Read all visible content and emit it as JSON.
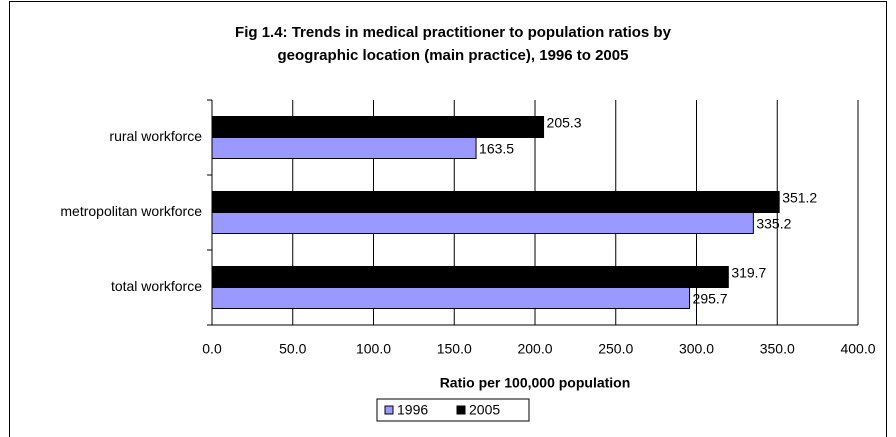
{
  "chart_data": {
    "type": "hbar",
    "title": [
      "Fig 1.4: Trends in medical practitioner to population ratios by",
      "geographic location (main practice), 1996 to 2005"
    ],
    "xlabel": "Ratio per 100,000 population",
    "categories": [
      "rural workforce",
      "metropolitan workforce",
      "total workforce"
    ],
    "series": [
      {
        "name": "1996",
        "color": "#9999ff",
        "values": [
          163.5,
          335.2,
          295.7
        ]
      },
      {
        "name": "2005",
        "color": "#000000",
        "values": [
          205.3,
          351.2,
          319.7
        ]
      }
    ],
    "xlim": [
      0,
      400
    ],
    "xticks": [
      {
        "value": 0,
        "label": "0.0"
      },
      {
        "value": 50,
        "label": "50.0"
      },
      {
        "value": 100,
        "label": "100.0"
      },
      {
        "value": 150,
        "label": "150.0"
      },
      {
        "value": 200,
        "label": "200.0"
      },
      {
        "value": 250,
        "label": "250.0"
      },
      {
        "value": 300,
        "label": "300.0"
      },
      {
        "value": 350,
        "label": "350.0"
      },
      {
        "value": 400,
        "label": "400.0"
      }
    ],
    "grid": true,
    "legend": "bottom"
  }
}
